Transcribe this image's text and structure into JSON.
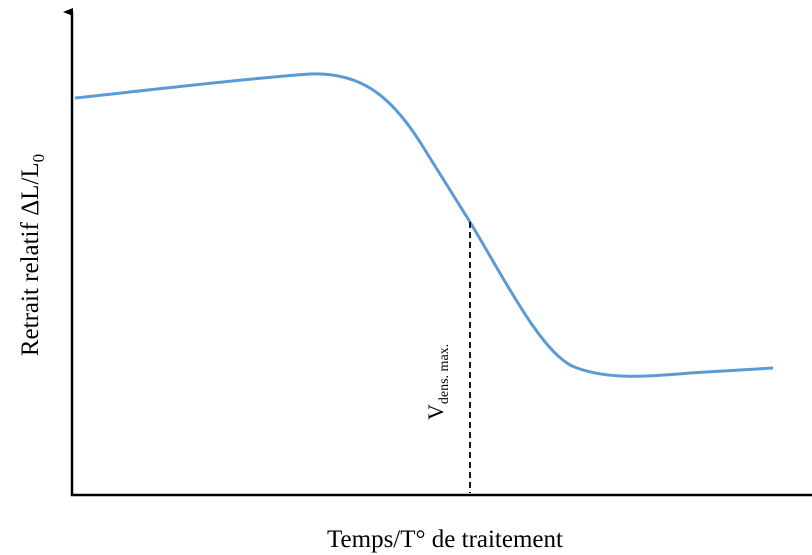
{
  "y_axis_label": {
    "text": "Retrait relatif ΔL/L",
    "subscript": "0"
  },
  "x_axis_label": "Temps/T° de traitement",
  "annotation": {
    "text": "V",
    "subscript": "dens. max."
  }
}
